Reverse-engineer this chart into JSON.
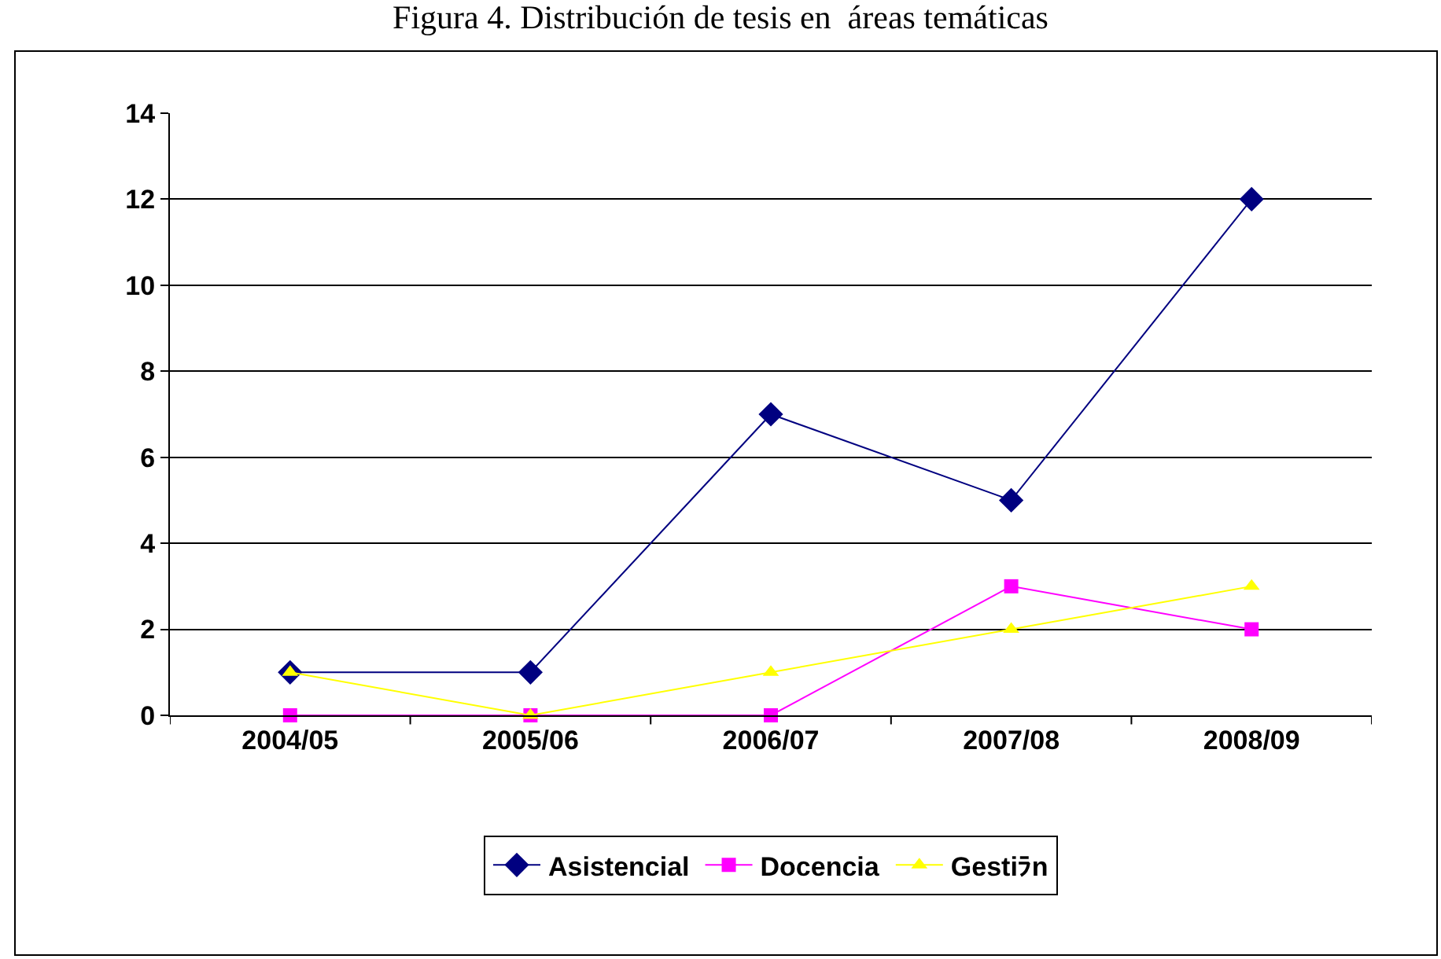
{
  "chart_data": {
    "type": "line",
    "title": "Figura 4. Distribución de tesis en  áreas temáticas",
    "categories": [
      "2004/05",
      "2005/06",
      "2006/07",
      "2007/08",
      "2008/09"
    ],
    "series": [
      {
        "name": "Asistencial",
        "color": "#000080",
        "values": [
          1,
          1,
          7,
          5,
          12
        ],
        "marker": "diamond"
      },
      {
        "name": "Docencia",
        "color": "#ff00ff",
        "values": [
          0,
          0,
          0,
          3,
          2
        ],
        "marker": "square"
      },
      {
        "name": "Gestiﾗn",
        "color": "#ffff00",
        "values": [
          1,
          0,
          1,
          2,
          3
        ],
        "marker": "triangle"
      }
    ],
    "ylim": [
      0,
      14
    ],
    "yticks": [
      0,
      2,
      4,
      6,
      8,
      10,
      12,
      14
    ],
    "grid": "y",
    "legend": "bottom",
    "line_style": "solid"
  }
}
